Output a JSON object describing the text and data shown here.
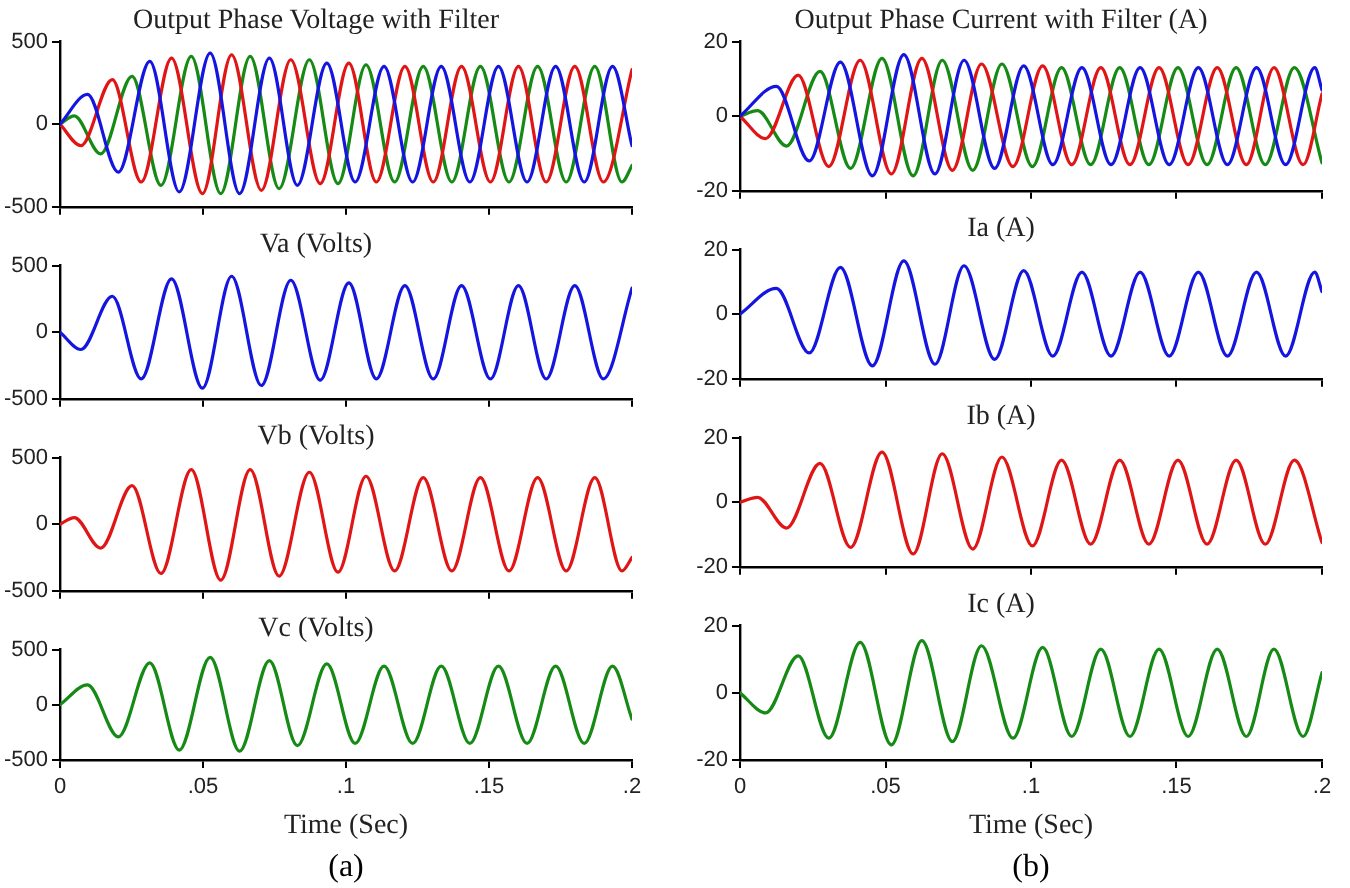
{
  "chart_data": [
    {
      "type": "line",
      "title": "Output Phase Voltage with Filter",
      "xlim": [
        0,
        0.2
      ],
      "xticks": [
        {
          "value": 0,
          "label": null
        },
        {
          "value": 0.05,
          "label": null
        },
        {
          "value": 0.1,
          "label": null
        },
        {
          "value": 0.15,
          "label": null
        },
        {
          "value": 0.2,
          "label": null
        }
      ],
      "ylim": [
        -500,
        500
      ],
      "yticks": [
        -500,
        0,
        500
      ],
      "tick_labels": "y",
      "marker": "none",
      "line_style": "solid",
      "series": [
        {
          "color": "#1515e0",
          "x": [
            0,
            0.0096,
            0.0204,
            0.0314,
            0.0417,
            0.0525,
            0.0628,
            0.0732,
            0.083,
            0.0933,
            0.1032,
            0.1133,
            0.1233,
            0.1333,
            0.1433,
            0.1533,
            0.1633,
            0.1733,
            0.1833,
            0.1932,
            0.2
          ],
          "values": [
            0,
            180,
            -290,
            380,
            -410,
            430,
            -420,
            400,
            -370,
            370,
            -350,
            350,
            -350,
            350,
            -350,
            350,
            -350,
            350,
            -350,
            350,
            -130
          ]
        },
        {
          "color": "#e01515",
          "x": [
            0,
            0.0073,
            0.0183,
            0.0284,
            0.039,
            0.0498,
            0.06,
            0.0704,
            0.0807,
            0.091,
            0.101,
            0.1106,
            0.1206,
            0.1305,
            0.1404,
            0.1505,
            0.1603,
            0.17,
            0.18,
            0.19,
            0.2
          ],
          "values": [
            0,
            -130,
            270,
            -350,
            400,
            -420,
            420,
            -400,
            390,
            -360,
            370,
            -350,
            350,
            -350,
            350,
            -350,
            350,
            -350,
            350,
            -350,
            330
          ]
        },
        {
          "color": "#158a15",
          "x": [
            0,
            0.005,
            0.0142,
            0.0252,
            0.0353,
            0.0459,
            0.0562,
            0.0665,
            0.0766,
            0.0872,
            0.0972,
            0.107,
            0.117,
            0.127,
            0.137,
            0.147,
            0.157,
            0.167,
            0.177,
            0.187,
            0.1965,
            0.2
          ],
          "values": [
            0,
            50,
            -180,
            290,
            -370,
            410,
            -420,
            410,
            -390,
            390,
            -360,
            360,
            -350,
            350,
            -350,
            350,
            -350,
            350,
            -350,
            350,
            -350,
            -250
          ]
        }
      ]
    },
    {
      "type": "line",
      "title": "Va (Volts)",
      "xlim": [
        0,
        0.2
      ],
      "xticks": [
        {
          "value": 0,
          "label": null
        },
        {
          "value": 0.05,
          "label": null
        },
        {
          "value": 0.1,
          "label": null
        },
        {
          "value": 0.15,
          "label": null
        },
        {
          "value": 0.2,
          "label": null
        }
      ],
      "ylim": [
        -500,
        500
      ],
      "yticks": [
        -500,
        0,
        500
      ],
      "tick_labels": "y",
      "marker": "none",
      "line_style": "solid",
      "series": [
        {
          "color": "#1515e0",
          "x": [
            0,
            0.0073,
            0.0183,
            0.0284,
            0.039,
            0.0498,
            0.06,
            0.0704,
            0.0807,
            0.091,
            0.101,
            0.1106,
            0.1206,
            0.1305,
            0.1404,
            0.1505,
            0.1603,
            0.17,
            0.18,
            0.19,
            0.2
          ],
          "values": [
            0,
            -130,
            270,
            -350,
            400,
            -420,
            420,
            -400,
            390,
            -360,
            370,
            -350,
            350,
            -350,
            350,
            -350,
            350,
            -350,
            350,
            -350,
            330
          ]
        }
      ]
    },
    {
      "type": "line",
      "title": "Vb (Volts)",
      "xlim": [
        0,
        0.2
      ],
      "xticks": [
        {
          "value": 0,
          "label": null
        },
        {
          "value": 0.05,
          "label": null
        },
        {
          "value": 0.1,
          "label": null
        },
        {
          "value": 0.15,
          "label": null
        },
        {
          "value": 0.2,
          "label": null
        }
      ],
      "ylim": [
        -500,
        500
      ],
      "yticks": [
        -500,
        0,
        500
      ],
      "tick_labels": "y",
      "marker": "none",
      "line_style": "solid",
      "series": [
        {
          "color": "#e01515",
          "x": [
            0,
            0.005,
            0.0142,
            0.0252,
            0.0353,
            0.0459,
            0.0562,
            0.0665,
            0.0766,
            0.0872,
            0.0972,
            0.107,
            0.117,
            0.127,
            0.137,
            0.147,
            0.157,
            0.167,
            0.177,
            0.187,
            0.1965,
            0.2
          ],
          "values": [
            0,
            50,
            -180,
            290,
            -370,
            410,
            -420,
            410,
            -390,
            390,
            -360,
            360,
            -350,
            350,
            -350,
            350,
            -350,
            350,
            -350,
            350,
            -350,
            -250
          ]
        }
      ]
    },
    {
      "type": "line",
      "title": "Vc (Volts)",
      "xlabel": "Time (Sec)",
      "annotations": [
        "(a)"
      ],
      "xlim": [
        0,
        0.2
      ],
      "xticks": [
        0,
        {
          "value": 0.05,
          "label": ".05"
        },
        {
          "value": 0.1,
          "label": ".1"
        },
        {
          "value": 0.15,
          "label": ".15"
        },
        {
          "value": 0.2,
          "label": ".2"
        }
      ],
      "ylim": [
        -500,
        500
      ],
      "yticks": [
        -500,
        0,
        500
      ],
      "marker": "none",
      "line_style": "solid",
      "series": [
        {
          "color": "#158a15",
          "x": [
            0,
            0.0096,
            0.0204,
            0.0314,
            0.0417,
            0.0525,
            0.0628,
            0.0732,
            0.083,
            0.0933,
            0.1032,
            0.1133,
            0.1233,
            0.1333,
            0.1433,
            0.1533,
            0.1633,
            0.1733,
            0.1833,
            0.1932,
            0.2
          ],
          "values": [
            0,
            180,
            -290,
            380,
            -410,
            430,
            -420,
            400,
            -370,
            370,
            -350,
            350,
            -350,
            350,
            -350,
            350,
            -350,
            350,
            -350,
            350,
            -130
          ]
        }
      ]
    },
    {
      "type": "line",
      "title": "Output Phase Current with Filter (A)",
      "xlim": [
        0,
        0.2
      ],
      "xticks": [
        {
          "value": 0,
          "label": null
        },
        {
          "value": 0.05,
          "label": null
        },
        {
          "value": 0.1,
          "label": null
        },
        {
          "value": 0.15,
          "label": null
        },
        {
          "value": 0.2,
          "label": null
        }
      ],
      "ylim": [
        -20,
        20
      ],
      "yticks": [
        -20,
        0,
        20
      ],
      "tick_labels": "y",
      "marker": "none",
      "line_style": "solid",
      "series": [
        {
          "color": "#1515e0",
          "x": [
            0,
            0.0125,
            0.0238,
            0.0345,
            0.0455,
            0.0563,
            0.067,
            0.077,
            0.0875,
            0.0975,
            0.1075,
            0.1175,
            0.1275,
            0.1375,
            0.1475,
            0.1575,
            0.1675,
            0.1775,
            0.1875,
            0.1975,
            0.2
          ],
          "values": [
            0,
            8,
            -12,
            14.5,
            -16,
            16.5,
            -15.5,
            15,
            -14,
            13.5,
            -13,
            13,
            -13,
            13,
            -13,
            13,
            -13,
            13,
            -13,
            13,
            7
          ]
        },
        {
          "color": "#e01515",
          "x": [
            0,
            0.0088,
            0.02,
            0.0305,
            0.0413,
            0.052,
            0.0625,
            0.073,
            0.083,
            0.0938,
            0.104,
            0.114,
            0.124,
            0.134,
            0.144,
            0.154,
            0.164,
            0.174,
            0.1835,
            0.1935,
            0.2
          ],
          "values": [
            0,
            -6,
            11,
            -13.5,
            15,
            -15.5,
            15.5,
            -14.5,
            14,
            -13.5,
            13.5,
            -13,
            13,
            -13,
            13,
            -13,
            13,
            -13,
            13,
            -13,
            6
          ]
        },
        {
          "color": "#158a15",
          "x": [
            0,
            0.006,
            0.016,
            0.0275,
            0.038,
            0.0488,
            0.0595,
            0.0695,
            0.08,
            0.09,
            0.1005,
            0.1105,
            0.1205,
            0.1305,
            0.1405,
            0.1505,
            0.1605,
            0.1705,
            0.1805,
            0.1905,
            0.2
          ],
          "values": [
            0,
            1.5,
            -8,
            12,
            -14,
            15.5,
            -16,
            15,
            -14.5,
            14,
            -13.5,
            13,
            -13,
            13,
            -13,
            13,
            -13,
            13,
            -13,
            13,
            -12.5
          ]
        }
      ]
    },
    {
      "type": "line",
      "title": "Ia (A)",
      "xlim": [
        0,
        0.2
      ],
      "xticks": [
        {
          "value": 0,
          "label": null
        },
        {
          "value": 0.05,
          "label": null
        },
        {
          "value": 0.1,
          "label": null
        },
        {
          "value": 0.15,
          "label": null
        },
        {
          "value": 0.2,
          "label": null
        }
      ],
      "ylim": [
        -20,
        20
      ],
      "yticks": [
        -20,
        0,
        20
      ],
      "tick_labels": "y",
      "marker": "none",
      "line_style": "solid",
      "series": [
        {
          "color": "#1515e0",
          "x": [
            0,
            0.0125,
            0.0238,
            0.0345,
            0.0455,
            0.0563,
            0.067,
            0.077,
            0.0875,
            0.0975,
            0.1075,
            0.1175,
            0.1275,
            0.1375,
            0.1475,
            0.1575,
            0.1675,
            0.1775,
            0.1875,
            0.1975,
            0.2
          ],
          "values": [
            0,
            8,
            -12,
            14.5,
            -16,
            16.5,
            -15.5,
            15,
            -14,
            13.5,
            -13,
            13,
            -13,
            13,
            -13,
            13,
            -13,
            13,
            -13,
            13,
            7
          ]
        }
      ]
    },
    {
      "type": "line",
      "title": "Ib (A)",
      "xlim": [
        0,
        0.2
      ],
      "xticks": [
        {
          "value": 0,
          "label": null
        },
        {
          "value": 0.05,
          "label": null
        },
        {
          "value": 0.1,
          "label": null
        },
        {
          "value": 0.15,
          "label": null
        },
        {
          "value": 0.2,
          "label": null
        }
      ],
      "ylim": [
        -20,
        20
      ],
      "yticks": [
        -20,
        0,
        20
      ],
      "tick_labels": "y",
      "marker": "none",
      "line_style": "solid",
      "series": [
        {
          "color": "#e01515",
          "x": [
            0,
            0.006,
            0.016,
            0.0275,
            0.038,
            0.0488,
            0.0595,
            0.0695,
            0.08,
            0.09,
            0.1005,
            0.1105,
            0.1205,
            0.1305,
            0.1405,
            0.1505,
            0.1605,
            0.1705,
            0.1805,
            0.1905,
            0.2
          ],
          "values": [
            0,
            1.5,
            -8,
            12,
            -14,
            15.5,
            -16,
            15,
            -14.5,
            14,
            -13.5,
            13,
            -13,
            13,
            -13,
            13,
            -13,
            13,
            -13,
            13,
            -12.5
          ]
        }
      ]
    },
    {
      "type": "line",
      "title": "Ic (A)",
      "xlabel": "Time (Sec)",
      "annotations": [
        "(b)"
      ],
      "xlim": [
        0,
        0.2
      ],
      "xticks": [
        0,
        {
          "value": 0.05,
          "label": ".05"
        },
        {
          "value": 0.1,
          "label": ".1"
        },
        {
          "value": 0.15,
          "label": ".15"
        },
        {
          "value": 0.2,
          "label": ".2"
        }
      ],
      "ylim": [
        -20,
        20
      ],
      "yticks": [
        -20,
        0,
        20
      ],
      "marker": "none",
      "line_style": "solid",
      "series": [
        {
          "color": "#158a15",
          "x": [
            0,
            0.0088,
            0.02,
            0.0305,
            0.0413,
            0.052,
            0.0625,
            0.073,
            0.083,
            0.0938,
            0.104,
            0.114,
            0.124,
            0.134,
            0.144,
            0.154,
            0.164,
            0.174,
            0.1835,
            0.1935,
            0.2
          ],
          "values": [
            0,
            -6,
            11,
            -13.5,
            15,
            -15.5,
            15.5,
            -14.5,
            14,
            -13.5,
            13.5,
            -13,
            13,
            -13,
            13,
            -13,
            13,
            -13,
            13,
            -13,
            6
          ]
        }
      ]
    }
  ]
}
